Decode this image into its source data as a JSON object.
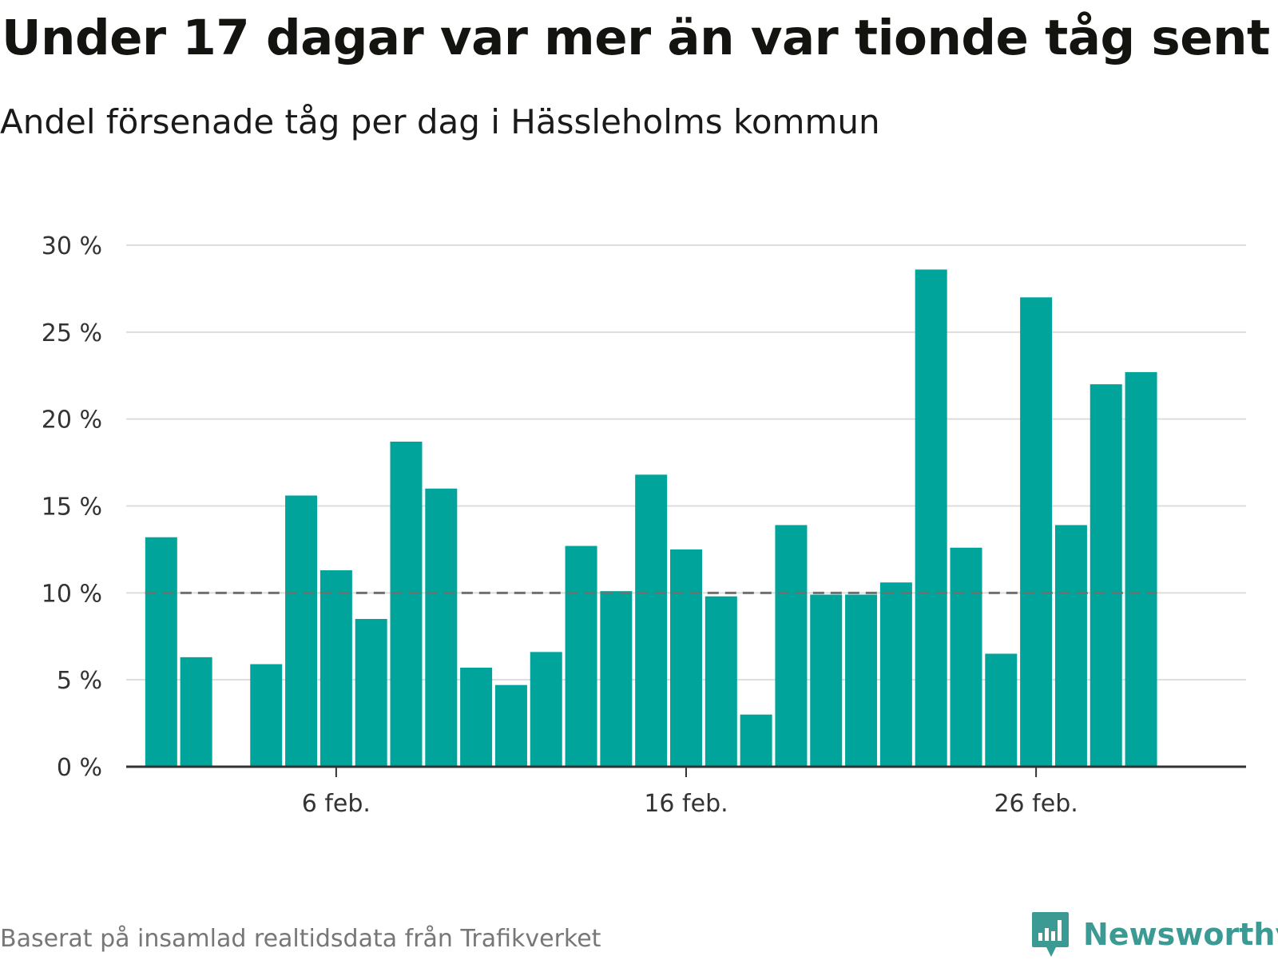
{
  "header": {
    "title": "Under 17 dagar var mer än var tionde tåg sent",
    "subtitle": "Andel försenade tåg per dag i Hässleholms kommun"
  },
  "footer": {
    "source": "Baserat på insamlad realtidsdata från Trafikverket",
    "brand": "Newsworthy",
    "brand_icon": "bar-chart-speech-bubble-icon"
  },
  "colors": {
    "bar": "#00a49a",
    "grid": "#dddddd",
    "reference_line": "#707070",
    "axis": "#333333",
    "brand": "#3c9a95"
  },
  "chart_data": {
    "type": "bar",
    "x": [
      1,
      2,
      3,
      4,
      5,
      6,
      7,
      8,
      9,
      10,
      11,
      12,
      13,
      14,
      15,
      16,
      17,
      18,
      19,
      20,
      21,
      22,
      23,
      24,
      25,
      26,
      27,
      28,
      29,
      30
    ],
    "values": [
      13.2,
      6.3,
      0,
      5.9,
      15.6,
      11.3,
      8.5,
      18.7,
      16.0,
      5.7,
      4.7,
      6.6,
      12.7,
      10.1,
      16.8,
      12.5,
      9.8,
      3.0,
      13.9,
      9.9,
      9.9,
      10.6,
      28.6,
      12.6,
      6.5,
      27.0,
      13.9,
      22.0,
      22.7,
      0
    ],
    "x_ticks": [
      {
        "x": 6,
        "label": "6 feb."
      },
      {
        "x": 16,
        "label": "16 feb."
      },
      {
        "x": 26,
        "label": "26 feb."
      }
    ],
    "y_ticks": [
      {
        "value": 0,
        "label": "0 %"
      },
      {
        "value": 5,
        "label": "5 %"
      },
      {
        "value": 10,
        "label": "10 %"
      },
      {
        "value": 15,
        "label": "15 %"
      },
      {
        "value": 20,
        "label": "20 %"
      },
      {
        "value": 25,
        "label": "25 %"
      },
      {
        "value": 30,
        "label": "30 %"
      }
    ],
    "ylim": [
      0,
      30
    ],
    "xlim": [
      0,
      32
    ],
    "reference_line": {
      "value": 10,
      "style": "dashed"
    },
    "grid": true,
    "legend": "none"
  }
}
